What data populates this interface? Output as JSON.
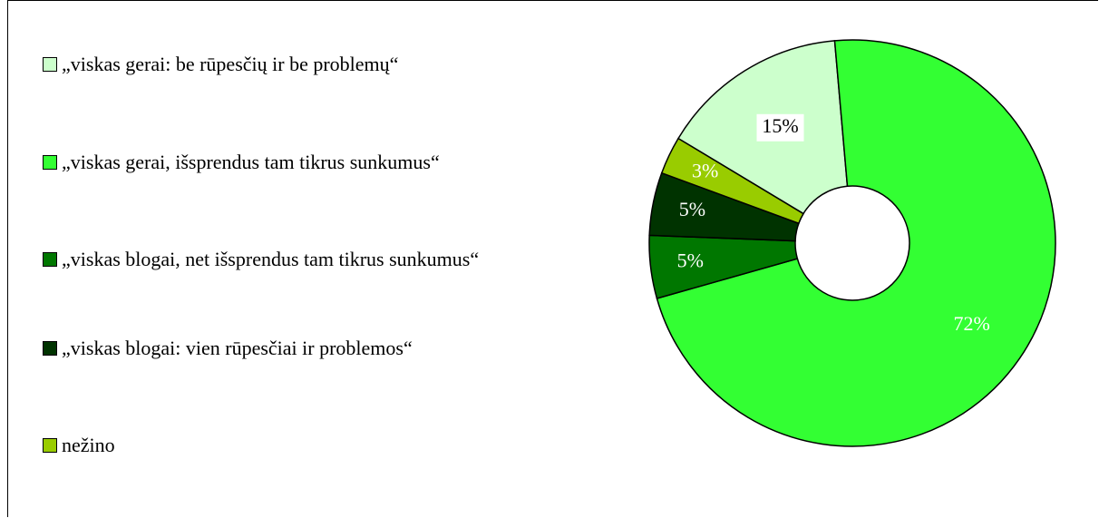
{
  "chart_data": {
    "type": "donut",
    "categories": [
      "„viskas gerai: be rūpesčių ir be problemų“",
      "„viskas gerai, išsprendus tam tikrus sunkumus“",
      "„viskas blogai, net išsprendus tam tikrus sunkumus“",
      "„viskas blogai: vien rūpesčiai ir problemos“",
      "nežino"
    ],
    "values": [
      15,
      72,
      5,
      5,
      3
    ],
    "value_labels": [
      "15%",
      "72%",
      "5%",
      "5%",
      "3%"
    ],
    "colors": [
      "#ccffcc",
      "#33ff33",
      "#007700",
      "#003300",
      "#99cc00"
    ],
    "legend": "left"
  }
}
